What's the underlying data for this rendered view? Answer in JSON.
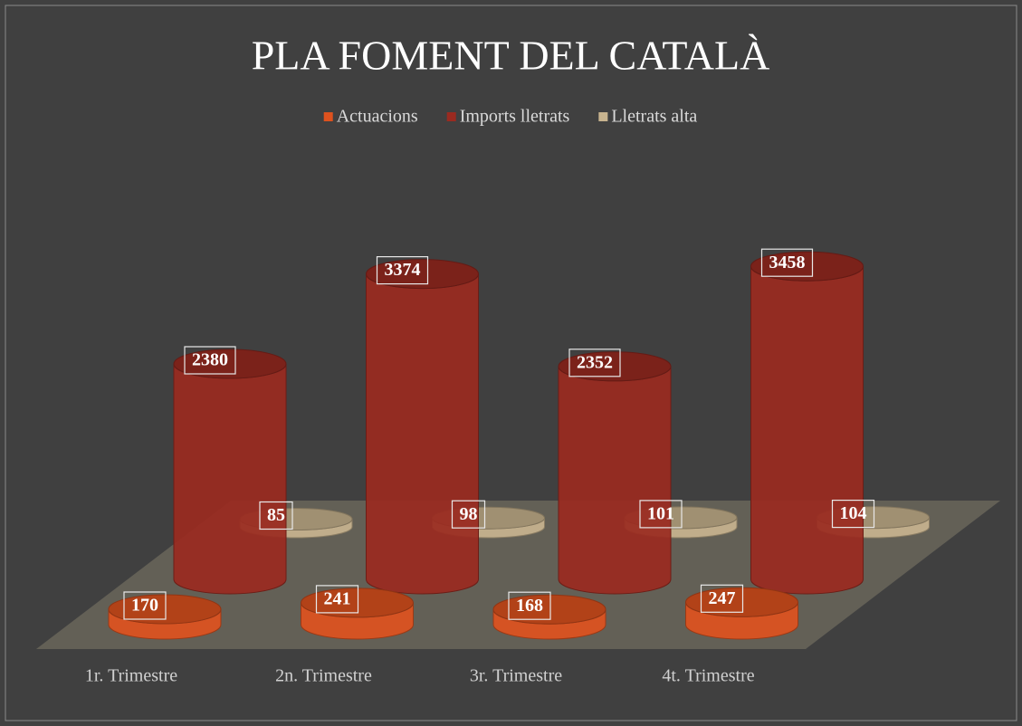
{
  "chart_data": {
    "type": "bar",
    "title": "PLA FOMENT DEL CATALÀ",
    "categories": [
      "1r. Trimestre",
      "2n. Trimestre",
      "3r. Trimestre",
      "4t. Trimestre"
    ],
    "series": [
      {
        "name": "Actuacions",
        "color": "#de521e",
        "values": [
          170,
          241,
          168,
          247
        ]
      },
      {
        "name": "Imports lletrats",
        "color": "#9a2a20",
        "values": [
          2380,
          3374,
          2352,
          3458
        ]
      },
      {
        "name": "Lletrats alta",
        "color": "#c8b48f",
        "values": [
          85,
          98,
          101,
          104
        ]
      }
    ],
    "legend": "top"
  }
}
